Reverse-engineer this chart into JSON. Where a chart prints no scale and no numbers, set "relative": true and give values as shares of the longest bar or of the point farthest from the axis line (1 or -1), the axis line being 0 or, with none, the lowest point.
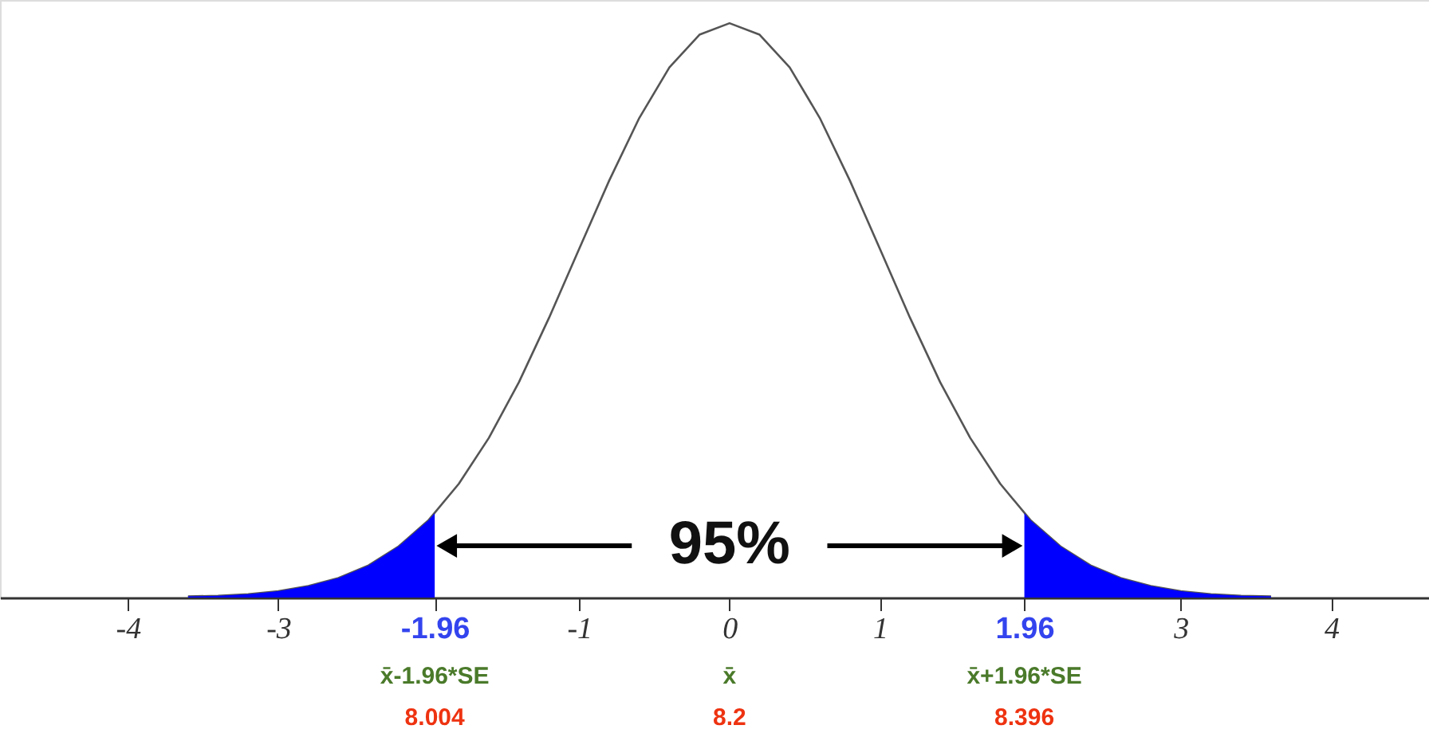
{
  "chart_data": {
    "type": "line",
    "relative": true,
    "grid": false,
    "xlim": [
      -4.85,
      4.65
    ],
    "xticks": [
      -4,
      -3,
      {
        "value": -1.96,
        "label": "-1.96"
      },
      -1,
      0,
      1,
      {
        "value": 1.96,
        "label": "1.96"
      },
      3,
      4
    ],
    "series": [
      {
        "color": "#555555",
        "x": [
          -3.6,
          -3.4,
          -3.2,
          -3.0,
          -2.8,
          -2.6,
          -2.4,
          -2.2,
          -2.0,
          -1.8,
          -1.6,
          -1.4,
          -1.2,
          -1.0,
          -0.8,
          -0.6,
          -0.4,
          -0.2,
          0,
          0.2,
          0.4,
          0.6,
          0.8,
          1.0,
          1.2,
          1.4,
          1.6,
          1.8,
          2.0,
          2.2,
          2.4,
          2.6,
          2.8,
          3.0,
          3.2,
          3.4,
          3.6
        ],
        "values": [
          0.002,
          0.003,
          0.006,
          0.011,
          0.02,
          0.034,
          0.056,
          0.089,
          0.135,
          0.198,
          0.278,
          0.375,
          0.487,
          0.607,
          0.726,
          0.835,
          0.923,
          0.98,
          1,
          0.98,
          0.923,
          0.835,
          0.726,
          0.607,
          0.487,
          0.375,
          0.278,
          0.198,
          0.135,
          0.089,
          0.056,
          0.034,
          0.02,
          0.011,
          0.006,
          0.003,
          0.002
        ]
      },
      {
        "type": "area",
        "color": "#0000ff",
        "x": [
          -3.6,
          -3.4,
          -3.2,
          -3.0,
          -2.8,
          -2.6,
          -2.4,
          -2.2,
          -2.0,
          -1.96
        ],
        "values": [
          0.002,
          0.003,
          0.006,
          0.011,
          0.02,
          0.034,
          0.056,
          0.089,
          0.135,
          0.147
        ]
      },
      {
        "type": "area",
        "color": "#0000ff",
        "x": [
          1.96,
          2.0,
          2.2,
          2.4,
          2.6,
          2.8,
          3.0,
          3.2,
          3.4,
          3.6
        ],
        "values": [
          0.147,
          0.135,
          0.089,
          0.056,
          0.034,
          0.02,
          0.011,
          0.006,
          0.003,
          0.002
        ]
      }
    ],
    "annotations": [
      "95%",
      "x̄-1.96*SE",
      "x̄",
      "x̄+1.96*SE",
      "8.004",
      "8.2",
      "8.396"
    ]
  }
}
